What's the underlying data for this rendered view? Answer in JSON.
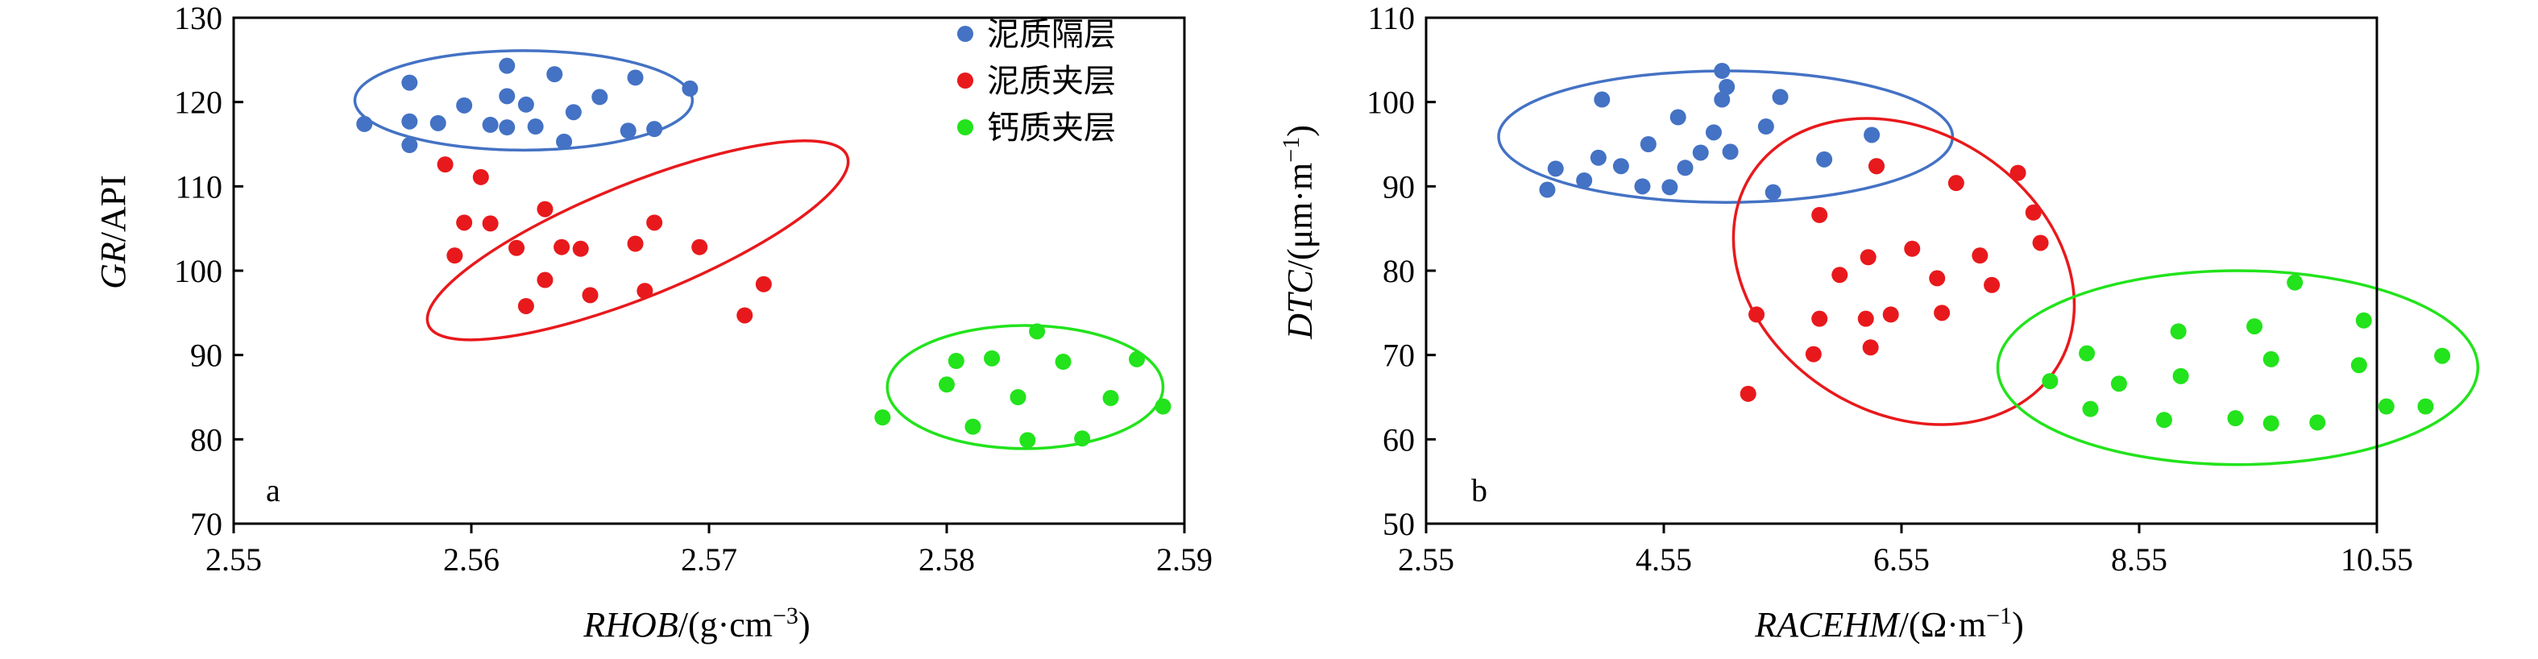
{
  "chart_data": [
    {
      "type": "scatter",
      "panel_label": "a",
      "xlabel": {
        "italic": "RHOB",
        "rest": "/(g·cm",
        "sup": "−3",
        "close": ")"
      },
      "ylabel": {
        "italic": "GR",
        "rest": "/API"
      },
      "xlim": [
        2.55,
        2.59
      ],
      "ylim": [
        70,
        130
      ],
      "x_ticks": [
        2.55,
        2.56,
        2.57,
        2.58,
        2.59
      ],
      "x_tick_labels": [
        "2.55",
        "2.56",
        "2.57",
        "2.58",
        "2.59"
      ],
      "y_ticks": [
        70,
        80,
        90,
        100,
        110,
        120,
        130
      ],
      "y_tick_labels": [
        "70",
        "80",
        "90",
        "100",
        "110",
        "120",
        "130"
      ],
      "grid": false,
      "legend_position": "top-right",
      "series": [
        {
          "name": "泥质隔层",
          "color": "#4472C4",
          "points": [
            [
              2.5555,
              117.4
            ],
            [
              2.5574,
              122.3
            ],
            [
              2.5574,
              117.7
            ],
            [
              2.5574,
              114.9
            ],
            [
              2.5586,
              117.5
            ],
            [
              2.5597,
              119.6
            ],
            [
              2.5608,
              117.3
            ],
            [
              2.5615,
              124.3
            ],
            [
              2.5615,
              120.7
            ],
            [
              2.5615,
              117.0
            ],
            [
              2.5627,
              117.1
            ],
            [
              2.5623,
              119.7
            ],
            [
              2.5635,
              123.3
            ],
            [
              2.5639,
              115.3
            ],
            [
              2.5643,
              118.8
            ],
            [
              2.5654,
              120.6
            ],
            [
              2.5666,
              116.6
            ],
            [
              2.5669,
              122.9
            ],
            [
              2.5677,
              116.8
            ],
            [
              2.5692,
              121.6
            ]
          ]
        },
        {
          "name": "泥质夹层",
          "color": "#E8191C",
          "points": [
            [
              2.5589,
              112.6
            ],
            [
              2.5593,
              101.8
            ],
            [
              2.5597,
              105.7
            ],
            [
              2.5604,
              111.1
            ],
            [
              2.5608,
              105.6
            ],
            [
              2.5619,
              102.7
            ],
            [
              2.5623,
              95.8
            ],
            [
              2.5631,
              107.3
            ],
            [
              2.5631,
              98.9
            ],
            [
              2.5638,
              102.8
            ],
            [
              2.5646,
              102.6
            ],
            [
              2.565,
              97.1
            ],
            [
              2.5669,
              103.2
            ],
            [
              2.5673,
              97.6
            ],
            [
              2.5677,
              105.7
            ],
            [
              2.5696,
              102.8
            ],
            [
              2.5715,
              94.7
            ],
            [
              2.5723,
              98.4
            ]
          ]
        },
        {
          "name": "钙质夹层",
          "color": "#22E31C",
          "points": [
            [
              2.5773,
              82.6
            ],
            [
              2.58,
              86.5
            ],
            [
              2.5804,
              89.3
            ],
            [
              2.5811,
              81.5
            ],
            [
              2.5819,
              89.6
            ],
            [
              2.583,
              85.0
            ],
            [
              2.5834,
              79.9
            ],
            [
              2.5838,
              92.8
            ],
            [
              2.5849,
              89.2
            ],
            [
              2.5857,
              80.1
            ],
            [
              2.5869,
              84.9
            ],
            [
              2.588,
              89.5
            ],
            [
              2.5891,
              83.9
            ]
          ]
        }
      ],
      "ellipses": [
        {
          "series": "泥质隔层",
          "center": [
            2.5622,
            120.2
          ],
          "semi_x": 0.0071,
          "semi_y": 5.9,
          "rotation_deg": 0
        },
        {
          "series": "泥质夹层",
          "center": [
            2.567,
            103.6
          ],
          "semi_x": 0.0095,
          "semi_y": 6.7,
          "rotation_deg": -22
        },
        {
          "series": "钙质夹层",
          "center": [
            2.5833,
            86.2
          ],
          "semi_x": 0.0058,
          "semi_y": 7.3,
          "rotation_deg": 0
        }
      ]
    },
    {
      "type": "scatter",
      "panel_label": "b",
      "xlabel": {
        "italic": "RACEHM",
        "rest": "/(Ω·m",
        "sup": "−1",
        "close": ")"
      },
      "ylabel": {
        "italic": "DTC",
        "rest": "/(μm·m",
        "sup": "−1",
        "close": ")"
      },
      "xlim": [
        2.55,
        10.55
      ],
      "ylim": [
        50,
        110
      ],
      "x_ticks": [
        2.55,
        4.55,
        6.55,
        8.55,
        10.55
      ],
      "x_tick_labels": [
        "2.55",
        "4.55",
        "6.55",
        "8.55",
        "10.55"
      ],
      "y_ticks": [
        50,
        60,
        70,
        80,
        90,
        100,
        110
      ],
      "y_tick_labels": [
        "50",
        "60",
        "70",
        "80",
        "90",
        "100",
        "110"
      ],
      "grid": false,
      "series": [
        {
          "name": "泥质隔层",
          "color": "#4472C4",
          "points": [
            [
              3.57,
              89.6
            ],
            [
              3.64,
              92.1
            ],
            [
              3.88,
              90.7
            ],
            [
              4.0,
              93.4
            ],
            [
              4.03,
              100.3
            ],
            [
              4.19,
              92.4
            ],
            [
              4.37,
              90.0
            ],
            [
              4.42,
              95.0
            ],
            [
              4.6,
              89.9
            ],
            [
              4.67,
              98.2
            ],
            [
              4.73,
              92.2
            ],
            [
              4.86,
              94.0
            ],
            [
              4.97,
              96.4
            ],
            [
              5.04,
              100.3
            ],
            [
              5.04,
              103.7
            ],
            [
              5.08,
              101.8
            ],
            [
              5.11,
              94.1
            ],
            [
              5.41,
              97.1
            ],
            [
              5.47,
              89.3
            ],
            [
              5.53,
              100.6
            ],
            [
              5.9,
              93.2
            ],
            [
              6.3,
              96.1
            ],
            [
              6.34,
              92.4
            ]
          ]
        },
        {
          "name": "泥质夹层",
          "color": "#E8191C",
          "points": [
            [
              5.26,
              65.4
            ],
            [
              5.33,
              74.8
            ],
            [
              5.81,
              70.1
            ],
            [
              5.86,
              74.3
            ],
            [
              5.86,
              86.6
            ],
            [
              6.03,
              79.5
            ],
            [
              6.25,
              74.3
            ],
            [
              6.27,
              81.6
            ],
            [
              6.29,
              70.9
            ],
            [
              6.34,
              92.4
            ],
            [
              6.46,
              74.8
            ],
            [
              6.64,
              82.6
            ],
            [
              6.85,
              79.1
            ],
            [
              6.89,
              75.0
            ],
            [
              7.01,
              90.4
            ],
            [
              7.21,
              81.8
            ],
            [
              7.31,
              78.3
            ],
            [
              7.53,
              91.6
            ],
            [
              7.66,
              86.9
            ],
            [
              7.72,
              83.3
            ]
          ]
        },
        {
          "name": "钙质夹层",
          "color": "#22E31C",
          "points": [
            [
              7.8,
              66.9
            ],
            [
              8.11,
              70.2
            ],
            [
              8.14,
              63.6
            ],
            [
              8.38,
              66.6
            ],
            [
              8.76,
              62.3
            ],
            [
              8.88,
              72.8
            ],
            [
              8.9,
              67.5
            ],
            [
              9.36,
              62.5
            ],
            [
              9.52,
              73.4
            ],
            [
              9.66,
              61.9
            ],
            [
              9.66,
              69.5
            ],
            [
              9.86,
              78.6
            ],
            [
              10.05,
              62.0
            ],
            [
              10.4,
              68.8
            ],
            [
              10.44,
              74.1
            ],
            [
              10.63,
              63.9
            ],
            [
              10.96,
              63.9
            ],
            [
              11.1,
              69.9
            ]
          ]
        }
      ],
      "ellipses": [
        {
          "series": "泥质隔层",
          "center": [
            5.07,
            95.9
          ],
          "semi_x": 1.91,
          "semi_y": 7.8,
          "rotation_deg": 0
        },
        {
          "series": "泥质夹层",
          "center": [
            6.57,
            79.9
          ],
          "semi_x": 1.52,
          "semi_y": 16.7,
          "rotation_deg": 32
        },
        {
          "series": "钙质夹层",
          "center": [
            9.38,
            68.5
          ],
          "semi_x": 2.02,
          "semi_y": 11.5,
          "rotation_deg": 0
        }
      ]
    }
  ]
}
